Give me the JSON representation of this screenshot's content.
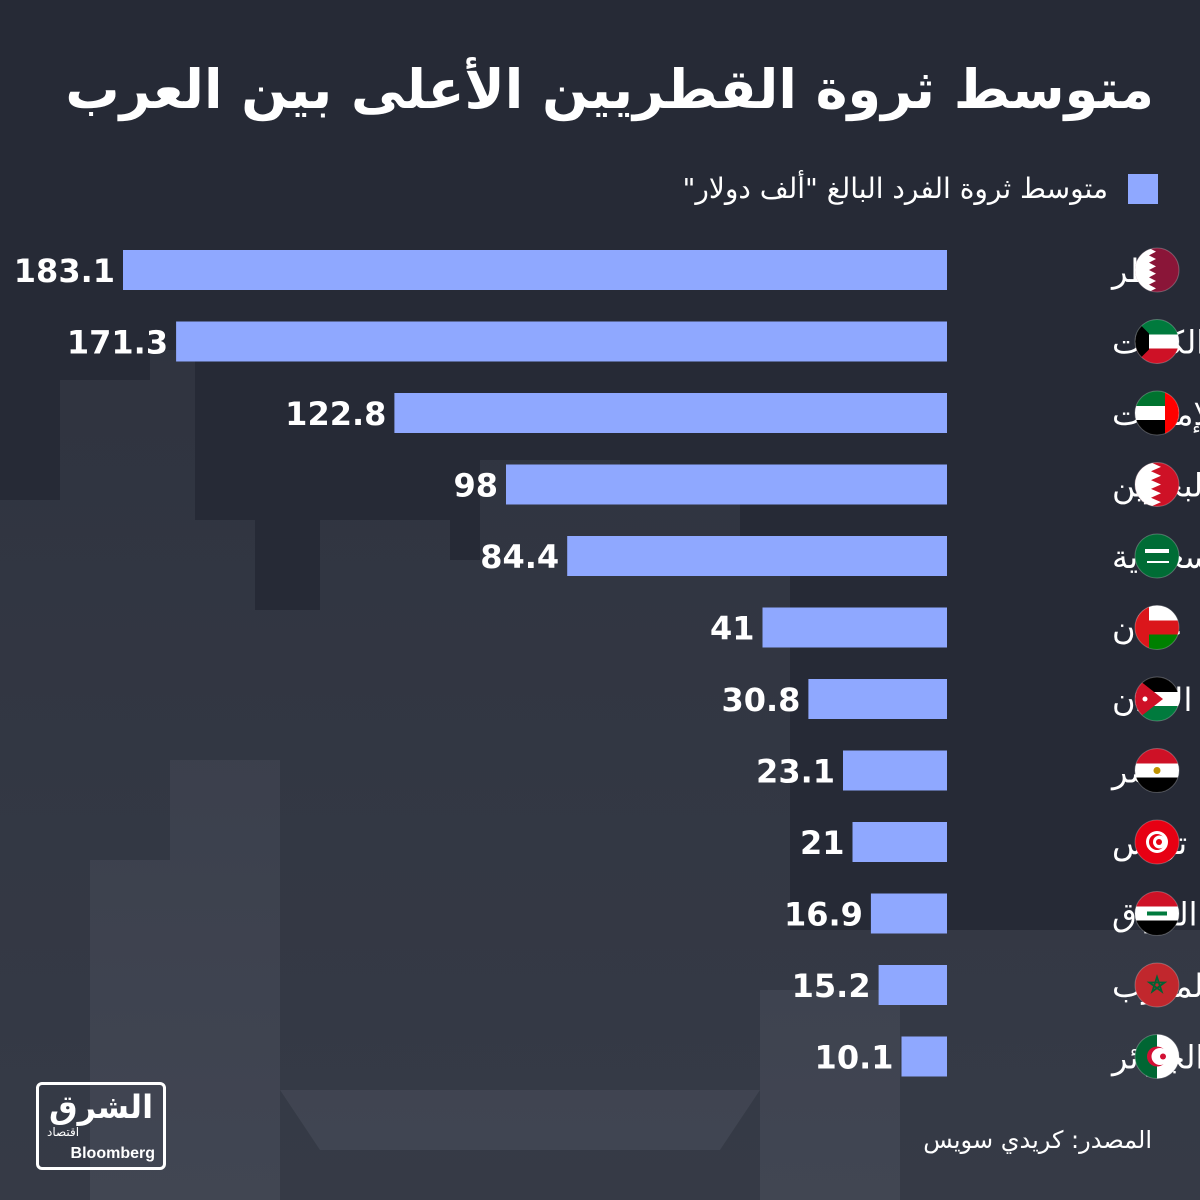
{
  "title": "متوسط ثروة القطريين الأعلى بين العرب",
  "legend": {
    "label": "متوسط ثروة الفرد البالغ \"ألف دولار\"",
    "color": "#8fa8ff"
  },
  "chart_data": {
    "type": "bar",
    "orientation": "horizontal",
    "categories": [
      "قطر",
      "الكويت",
      "الإمارات",
      "البحرين",
      "السعودية",
      "عمان",
      "الأردن",
      "مصر",
      "تونس",
      "العراق",
      "المغرب",
      "الجزائر"
    ],
    "flags": [
      "qatar-flag-icon",
      "kuwait-flag-icon",
      "uae-flag-icon",
      "bahrain-flag-icon",
      "saudi-flag-icon",
      "oman-flag-icon",
      "jordan-flag-icon",
      "egypt-flag-icon",
      "tunisia-flag-icon",
      "iraq-flag-icon",
      "morocco-flag-icon",
      "algeria-flag-icon"
    ],
    "series": [
      {
        "name": "متوسط ثروة الفرد البالغ \"ألف دولار\"",
        "values": [
          183.1,
          171.3,
          122.8,
          98,
          84.4,
          41,
          30.8,
          23.1,
          21,
          16.9,
          15.2,
          10.1
        ],
        "labels": [
          "183.1",
          "171.3",
          "122.8",
          "98",
          "84.4",
          "41",
          "30.8",
          "23.1",
          "21",
          "16.9",
          "15.2",
          "10.1"
        ]
      }
    ],
    "bar_color": "#8fa8ff",
    "xlim": [
      0,
      183.1
    ],
    "grid": false,
    "legend_position": "top-right"
  },
  "source": "المصدر: كريدي سويس",
  "logo": {
    "main": "الشرق",
    "sub": "اقتصاد",
    "brand": "Bloomberg"
  },
  "colors": {
    "background": "#262a36",
    "text": "#ffffff"
  }
}
